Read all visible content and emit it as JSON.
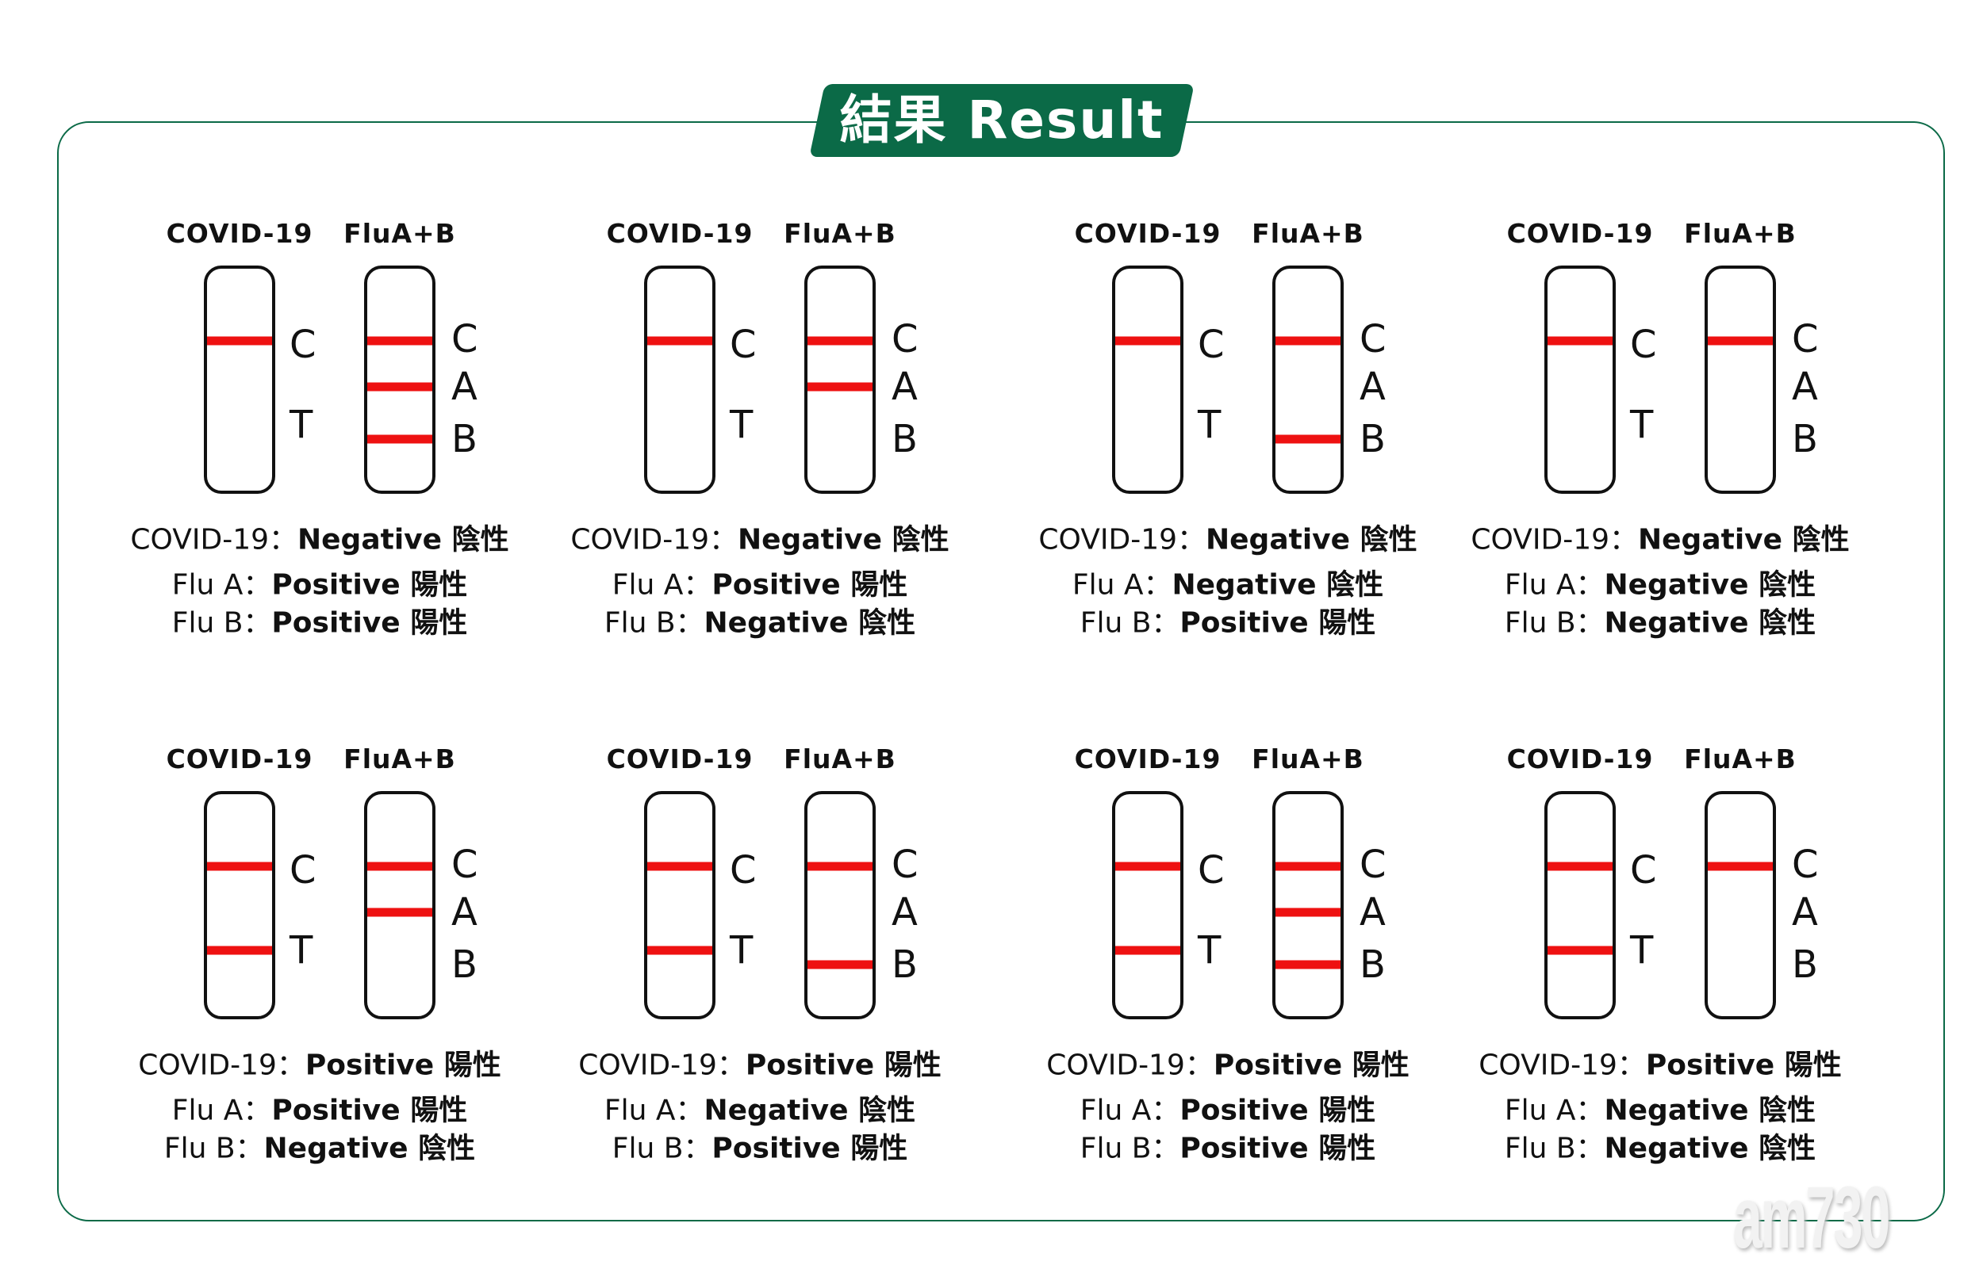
{
  "title": "結果 Result",
  "strip_labels": {
    "covid": "COVID-19",
    "flu": "FluA+B"
  },
  "zone_letters": {
    "covid": [
      "C",
      "T"
    ],
    "flu": [
      "C",
      "A",
      "B"
    ]
  },
  "result_labels": {
    "covid": "COVID-19：",
    "flu_a": "Flu A：",
    "flu_b": "Flu B："
  },
  "values": {
    "positive": "Positive 陽性",
    "negative": "Negative 陰性"
  },
  "colors": {
    "accent": "#0b6a47",
    "line": "#ee1111"
  },
  "watermark": "am730",
  "cases": [
    {
      "covid": false,
      "flu_a": true,
      "flu_b": true
    },
    {
      "covid": false,
      "flu_a": true,
      "flu_b": false
    },
    {
      "covid": false,
      "flu_a": false,
      "flu_b": true
    },
    {
      "covid": false,
      "flu_a": false,
      "flu_b": false
    },
    {
      "covid": true,
      "flu_a": true,
      "flu_b": false
    },
    {
      "covid": true,
      "flu_a": false,
      "flu_b": true
    },
    {
      "covid": true,
      "flu_a": true,
      "flu_b": true
    },
    {
      "covid": true,
      "flu_a": false,
      "flu_b": false
    }
  ]
}
